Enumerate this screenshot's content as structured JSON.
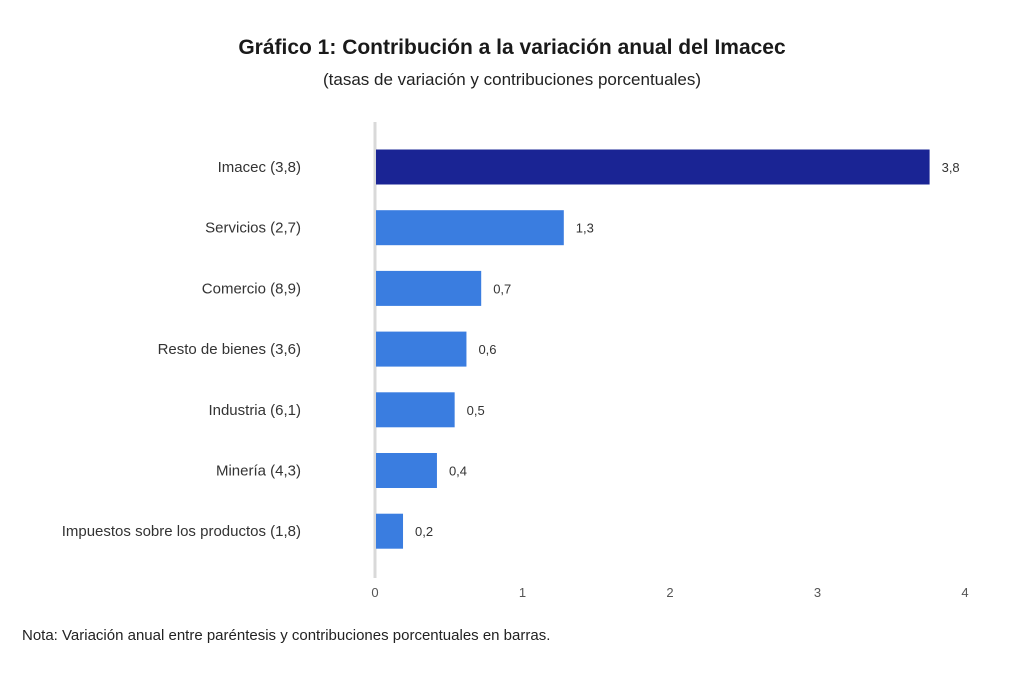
{
  "chart_data": {
    "type": "bar",
    "orientation": "horizontal",
    "title": "Gráfico 1: Contribución a la variación anual del Imacec",
    "subtitle": "(tasas de variación y contribuciones porcentuales)",
    "categories": [
      "Imacec (3,8)",
      "Servicios (2,7)",
      "Comercio (8,9)",
      "Resto de bienes (3,6)",
      "Industria (6,1)",
      "Minería (4,3)",
      "Impuestos sobre los productos (1,8)"
    ],
    "values": [
      3.76,
      1.28,
      0.72,
      0.62,
      0.54,
      0.42,
      0.19
    ],
    "value_labels": [
      "3,8",
      "1,3",
      "0,7",
      "0,6",
      "0,5",
      "0,4",
      "0,2"
    ],
    "xlim": [
      0,
      4
    ],
    "xticks": [
      0,
      1,
      2,
      3,
      4
    ],
    "xtick_labels": [
      "0",
      "1",
      "2",
      "3",
      "4"
    ],
    "colors": {
      "highlight": "#1a2494",
      "bar": "#3a7de0",
      "axis": "#d9d9d9"
    },
    "grid": false,
    "legend": "none"
  },
  "note": "Nota: Variación anual entre paréntesis y contribuciones porcentuales en barras."
}
